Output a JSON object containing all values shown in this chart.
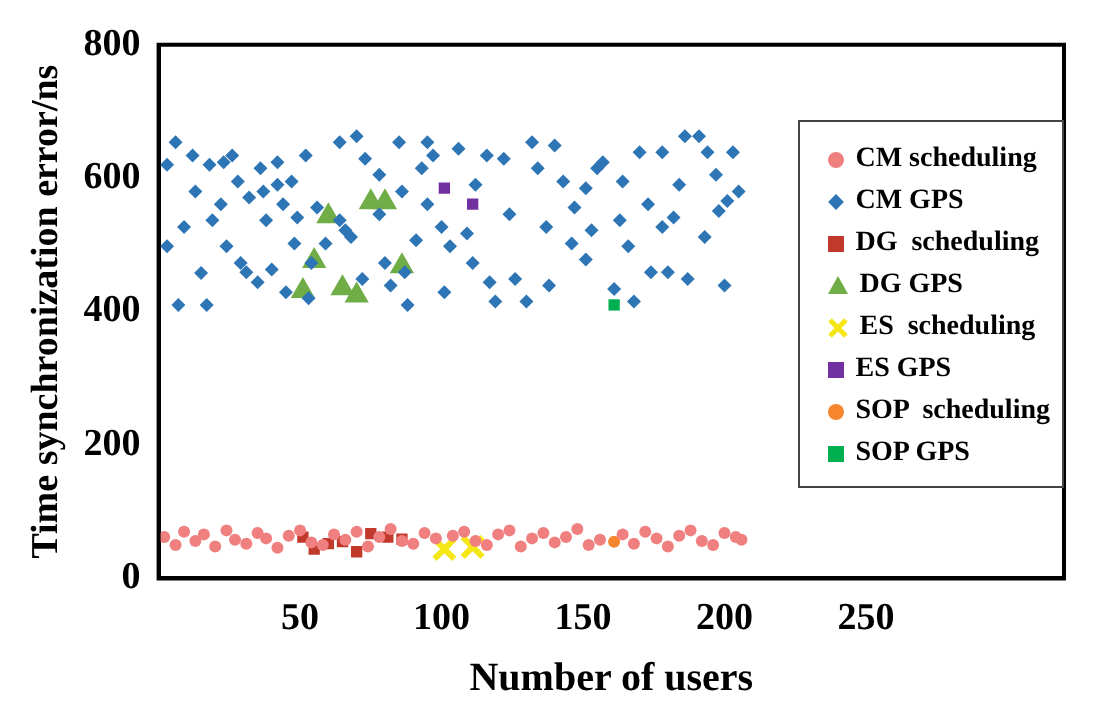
{
  "chart_data": {
    "type": "scatter",
    "xlabel": "Number of users",
    "ylabel": "Time synchronization error/ns",
    "xlim": [
      0,
      320
    ],
    "ylim": [
      0,
      800
    ],
    "xticks": [
      50,
      100,
      150,
      200,
      250
    ],
    "yticks": [
      0,
      200,
      400,
      600,
      800
    ],
    "grid": false,
    "legend": "right",
    "series": [
      {
        "name": "CM scheduling",
        "color": "#f08080",
        "marker": "circle",
        "x": [
          2,
          6,
          9,
          13,
          16,
          20,
          24,
          27,
          31,
          35,
          38,
          42,
          46,
          50,
          54,
          58,
          62,
          66,
          70,
          74,
          78,
          82,
          86,
          90,
          94,
          98,
          104,
          108,
          112,
          116,
          120,
          124,
          128,
          132,
          136,
          140,
          144,
          148,
          152,
          156,
          164,
          168,
          172,
          176,
          180,
          184,
          188,
          192,
          196,
          200,
          204,
          206
        ],
        "values": [
          62,
          50,
          70,
          56,
          66,
          48,
          72,
          58,
          52,
          68,
          60,
          46,
          64,
          72,
          54,
          50,
          66,
          58,
          70,
          48,
          62,
          74,
          56,
          52,
          68,
          60,
          64,
          70,
          56,
          50,
          66,
          72,
          48,
          60,
          68,
          54,
          62,
          74,
          50,
          58,
          66,
          52,
          70,
          60,
          48,
          64,
          72,
          56,
          50,
          68,
          62,
          58
        ]
      },
      {
        "name": "CM GPS",
        "color": "#2e75b6",
        "marker": "diamond",
        "x": [
          3,
          6,
          3,
          7,
          12,
          9,
          13,
          15,
          18,
          17,
          19,
          22,
          23,
          24,
          26,
          28,
          29,
          31,
          32,
          35,
          36,
          37,
          38,
          40,
          42,
          42,
          44,
          45,
          47,
          48,
          49,
          52,
          53,
          54,
          56,
          59,
          64,
          64,
          66,
          68,
          70,
          72,
          73,
          78,
          78,
          80,
          82,
          85,
          86,
          87,
          88,
          91,
          93,
          95,
          95,
          97,
          100,
          101,
          103,
          106,
          109,
          111,
          112,
          116,
          117,
          119,
          122,
          124,
          126,
          130,
          132,
          134,
          137,
          138,
          140,
          143,
          146,
          147,
          151,
          151,
          153,
          155,
          157,
          161,
          163,
          164,
          166,
          168,
          170,
          173,
          174,
          178,
          178,
          180,
          182,
          184,
          186,
          187,
          191,
          193,
          194,
          197,
          198,
          200,
          201,
          203,
          205
        ],
        "values": [
          620,
          654,
          498,
          410,
          634,
          527,
          580,
          458,
          620,
          410,
          537,
          561,
          624,
          498,
          634,
          595,
          473,
          459,
          571,
          444,
          615,
          580,
          537,
          463,
          590,
          624,
          561,
          429,
          595,
          502,
          541,
          634,
          420,
          473,
          556,
          502,
          654,
          537,
          522,
          512,
          663,
          449,
          629,
          605,
          546,
          473,
          439,
          654,
          580,
          459,
          410,
          507,
          615,
          654,
          561,
          634,
          527,
          429,
          498,
          644,
          517,
          473,
          590,
          634,
          444,
          415,
          629,
          546,
          449,
          415,
          654,
          615,
          527,
          439,
          649,
          595,
          502,
          556,
          585,
          478,
          522,
          615,
          624,
          434,
          537,
          595,
          498,
          415,
          639,
          561,
          459,
          639,
          527,
          459,
          541,
          590,
          663,
          449,
          663,
          512,
          639,
          605,
          551,
          439,
          566,
          639,
          580
        ]
      },
      {
        "name": "DG  scheduling",
        "color": "#c0392b",
        "marker": "square",
        "x": [
          51,
          55,
          60,
          65,
          70,
          75,
          81,
          86
        ],
        "values": [
          62,
          44,
          52,
          55,
          40,
          67,
          62,
          59
        ]
      },
      {
        "name": "DG GPS",
        "color": "#70ad47",
        "marker": "triangle",
        "x": [
          51,
          55,
          60,
          65,
          70,
          75,
          80,
          86
        ],
        "values": [
          431,
          476,
          543,
          435,
          424,
          564,
          564,
          468
        ]
      },
      {
        "name": "ES  scheduling",
        "color": "#f5e616",
        "marker": "cross",
        "x": [
          101,
          111
        ],
        "values": [
          44,
          47
        ]
      },
      {
        "name": "ES GPS",
        "color": "#7030a0",
        "marker": "square",
        "x": [
          101,
          111
        ],
        "values": [
          585,
          561
        ]
      },
      {
        "name": "SOP  scheduling",
        "color": "#f5862e",
        "marker": "circle",
        "x": [
          161
        ],
        "values": [
          55
        ]
      },
      {
        "name": "SOP GPS",
        "color": "#00b050",
        "marker": "square",
        "x": [
          161
        ],
        "values": [
          410
        ]
      }
    ]
  }
}
